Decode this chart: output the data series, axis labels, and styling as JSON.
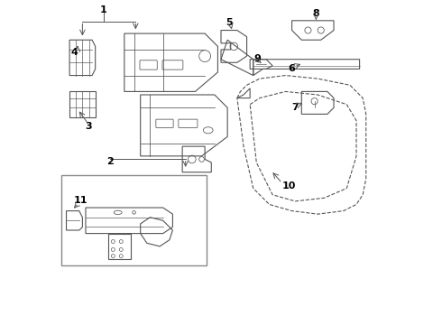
{
  "title": "",
  "bg_color": "#ffffff",
  "line_color": "#555555",
  "figsize": [
    4.9,
    3.6
  ],
  "dpi": 100
}
